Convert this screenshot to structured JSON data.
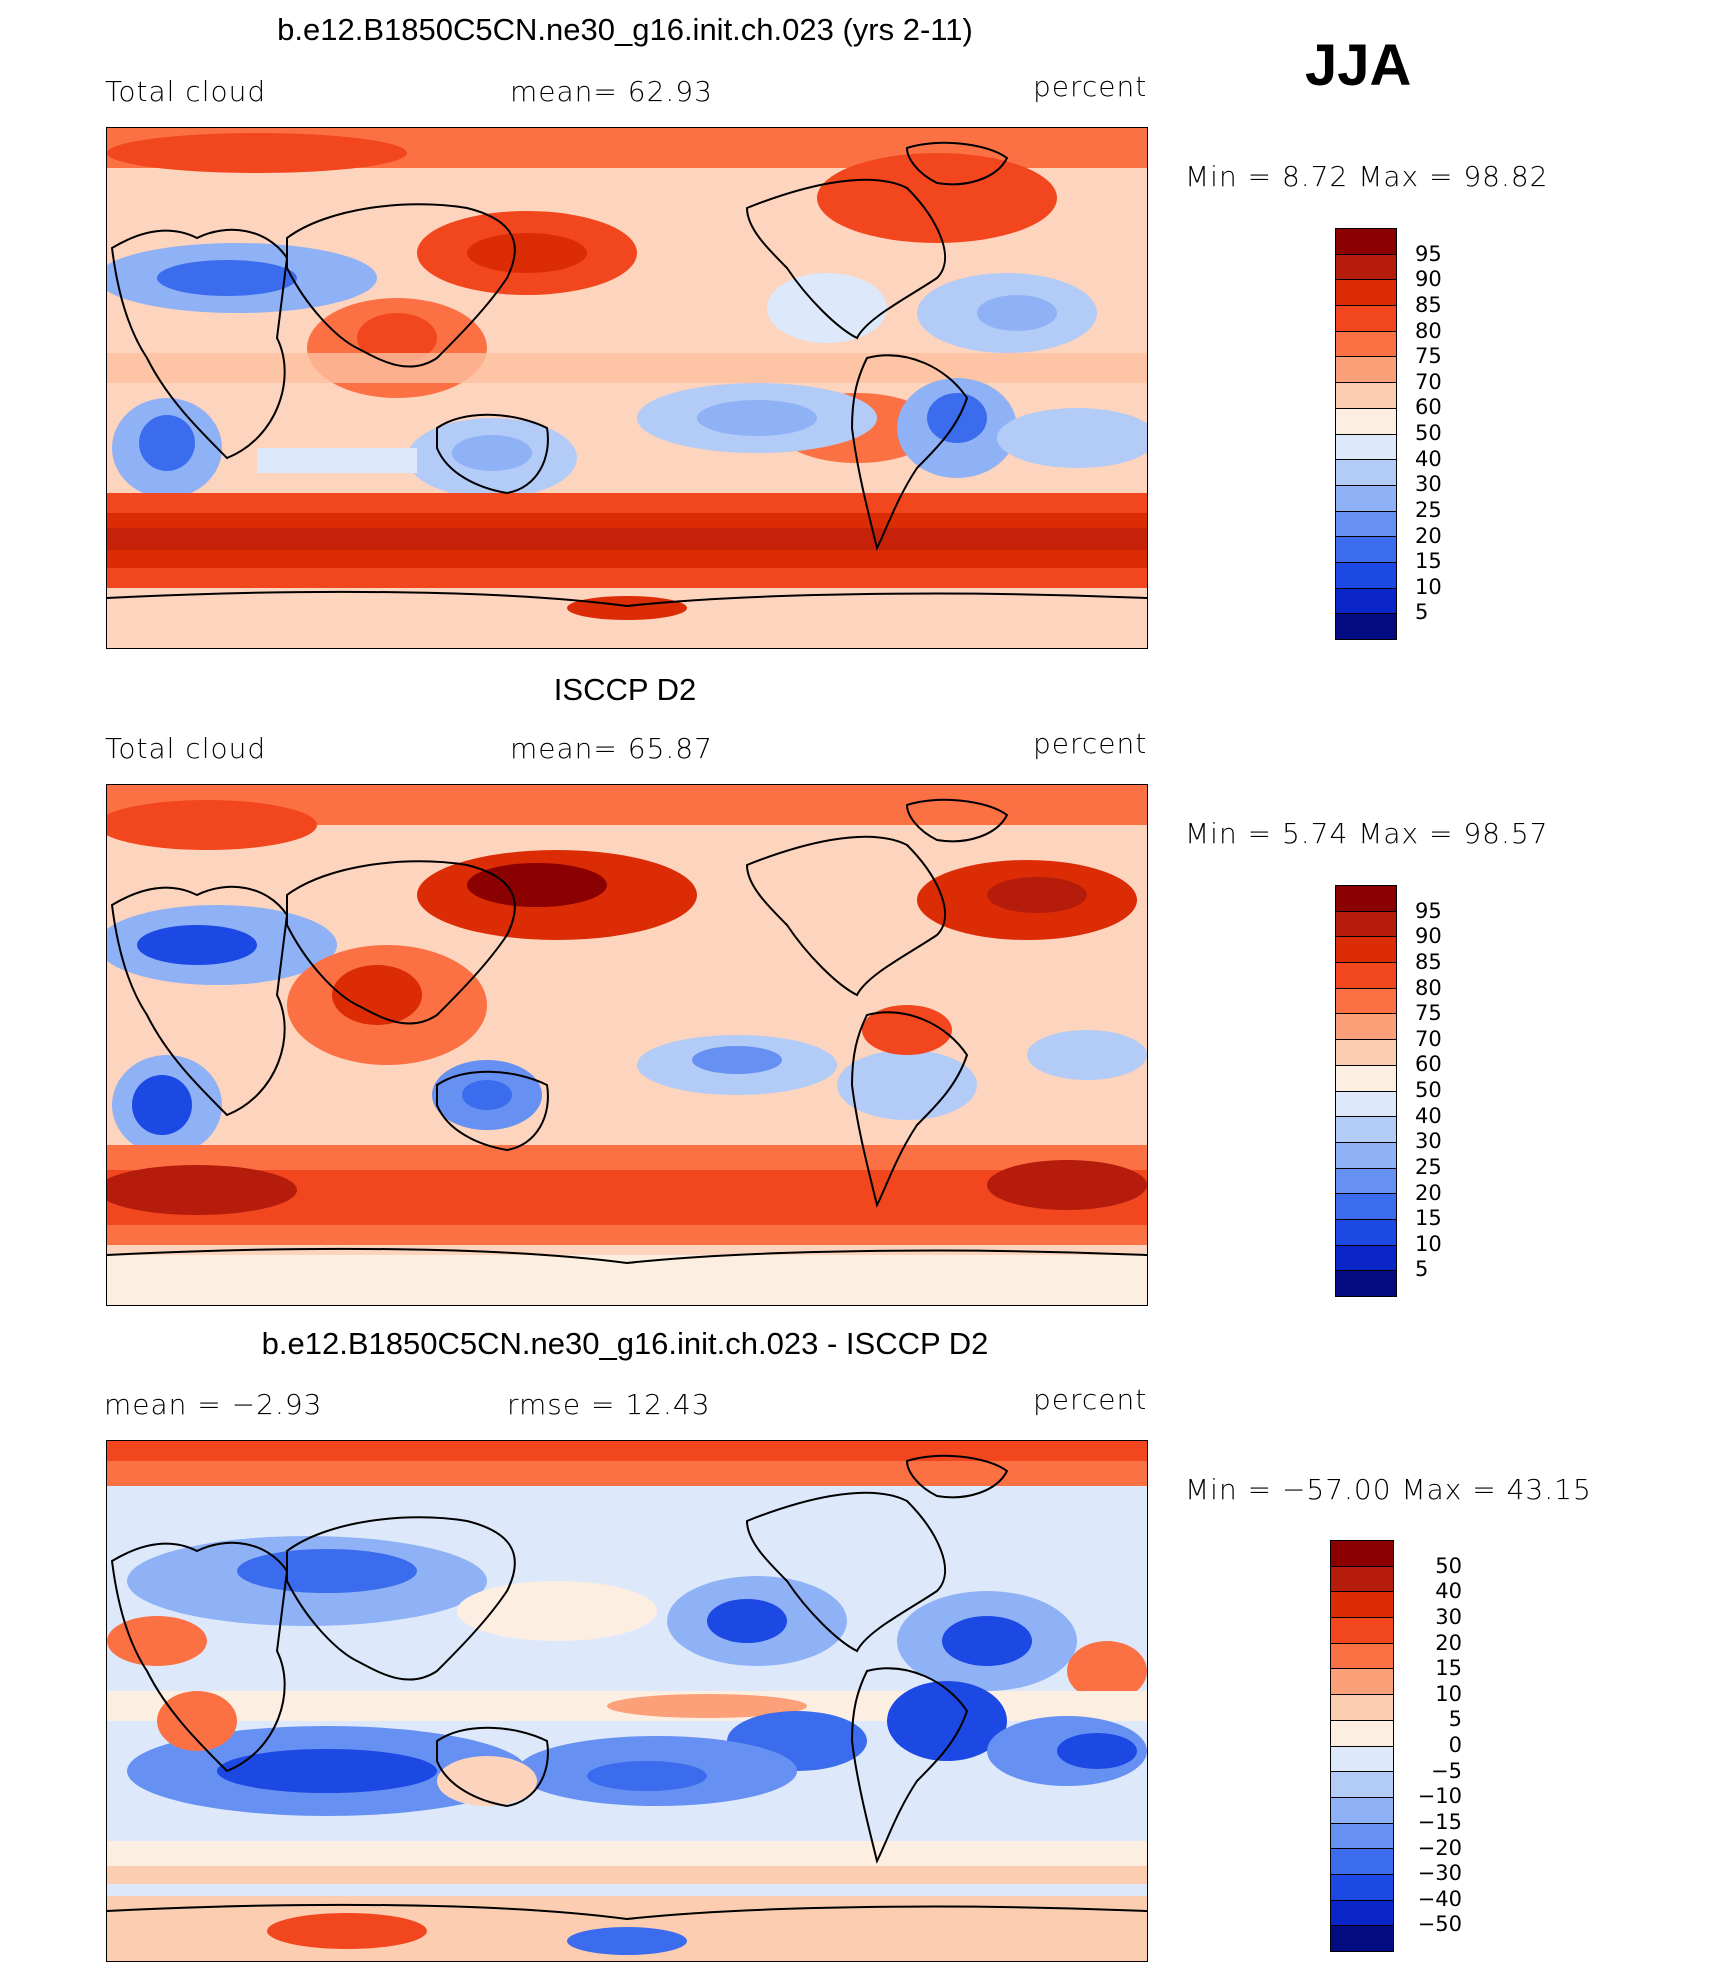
{
  "season": "JJA",
  "panels": [
    {
      "title": "b.e12.B1850C5CN.ne30_g16.init.ch.023 (yrs 2-11)",
      "left_label": "Total cloud",
      "center_label": "mean=   62.93",
      "units": "percent",
      "minmax": "Min =    8.72  Max =    98.82",
      "colorbar": {
        "labels": [
          "95",
          "90",
          "85",
          "80",
          "75",
          "70",
          "60",
          "50",
          "40",
          "30",
          "25",
          "20",
          "15",
          "10",
          "5"
        ],
        "colors": [
          "#8b0000",
          "#b61c0c",
          "#dc2c06",
          "#f2461e",
          "#fb7144",
          "#fca07a",
          "#fdcdb2",
          "#fdeee2",
          "#dde9fb",
          "#b3cbf7",
          "#8fb1f6",
          "#6690f1",
          "#3b6ced",
          "#1c48e4",
          "#0a26c8",
          "#030c80"
        ]
      }
    },
    {
      "title": "ISCCP D2",
      "left_label": "Total cloud",
      "center_label": "mean=   65.87",
      "units": "percent",
      "minmax": "Min =    5.74  Max =    98.57",
      "colorbar": {
        "labels": [
          "95",
          "90",
          "85",
          "80",
          "75",
          "70",
          "60",
          "50",
          "40",
          "30",
          "25",
          "20",
          "15",
          "10",
          "5"
        ],
        "colors": [
          "#8b0000",
          "#b61c0c",
          "#dc2c06",
          "#f2461e",
          "#fb7144",
          "#fca07a",
          "#fdcdb2",
          "#fdeee2",
          "#dde9fb",
          "#b3cbf7",
          "#8fb1f6",
          "#6690f1",
          "#3b6ced",
          "#1c48e4",
          "#0a26c8",
          "#030c80"
        ]
      }
    },
    {
      "title": "b.e12.B1850C5CN.ne30_g16.init.ch.023 - ISCCP D2",
      "left_label": "mean =   −2.93",
      "center_label": "rmse =   12.43",
      "units": "percent",
      "minmax": "Min = −57.00  Max =    43.15",
      "colorbar": {
        "labels": [
          "50",
          "40",
          "30",
          "20",
          "15",
          "10",
          "5",
          "0",
          "−5",
          "−10",
          "−15",
          "−20",
          "−30",
          "−40",
          "−50"
        ],
        "colors": [
          "#8b0000",
          "#b61c0c",
          "#dc2c06",
          "#f2461e",
          "#fb7144",
          "#fca07a",
          "#fdcdb2",
          "#fdeee2",
          "#dde9fb",
          "#b3cbf7",
          "#8fb1f6",
          "#6690f1",
          "#3b6ced",
          "#1c48e4",
          "#0a26c8",
          "#030c80"
        ]
      }
    }
  ]
}
